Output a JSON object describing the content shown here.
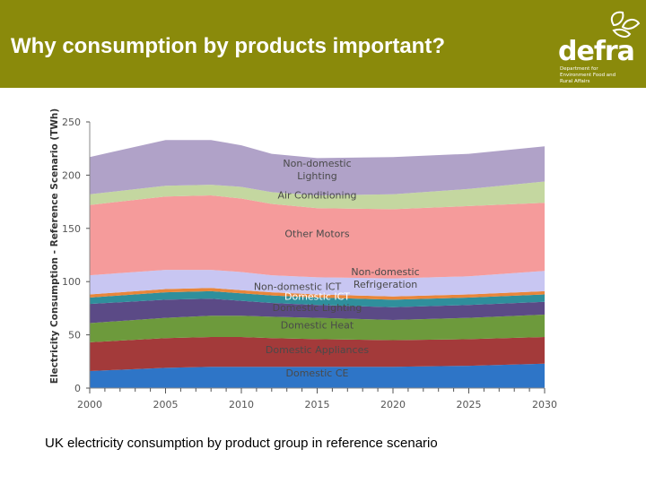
{
  "header": {
    "title": "Why consumption by products important?",
    "logo": {
      "word": "defra",
      "tagline": "Department for Environment Food and Rural Affairs",
      "color": "#ffffff"
    },
    "bg_color": "#8a8a0b"
  },
  "caption": "UK electricity consumption by product group in reference scenario",
  "chart_data": {
    "type": "area",
    "stacked": true,
    "title": "",
    "xlabel": "",
    "ylabel": "Electricity Consumption - Reference Scenario (TWh)",
    "xlim": [
      2000,
      2030
    ],
    "ylim": [
      0,
      250
    ],
    "x_ticks": [
      2000,
      2005,
      2010,
      2015,
      2020,
      2025,
      2030
    ],
    "y_ticks": [
      0,
      50,
      100,
      150,
      200,
      250
    ],
    "grid": false,
    "legend": "none",
    "x": [
      2000,
      2005,
      2008,
      2010,
      2012,
      2015,
      2020,
      2025,
      2030
    ],
    "series": [
      {
        "name": "Domestic CE",
        "color": "#2e75c7",
        "values": [
          16,
          19,
          20,
          20,
          20,
          20,
          20,
          21,
          23
        ]
      },
      {
        "name": "Domestic Appliances",
        "color": "#a33a3a",
        "values": [
          27,
          28,
          28,
          28,
          27,
          26,
          25,
          25,
          25
        ]
      },
      {
        "name": "Domestic Heat",
        "color": "#6d9a3c",
        "values": [
          18,
          19,
          20,
          20,
          20,
          20,
          19,
          20,
          21
        ]
      },
      {
        "name": "Domestic Lighting",
        "color": "#5b4a86",
        "values": [
          18,
          17,
          16,
          14,
          13,
          12,
          12,
          12,
          12
        ]
      },
      {
        "name": "Domestic ICT",
        "color": "#2f8f9c",
        "values": [
          6,
          7,
          7,
          7,
          7,
          7,
          7,
          7,
          7
        ]
      },
      {
        "name": "Non-domestic ICT",
        "color": "#e8863a",
        "values": [
          3,
          3,
          3,
          3,
          3,
          3,
          3,
          3,
          3
        ]
      },
      {
        "name": "Non-domestic Refrigeration",
        "color": "#c8c6f2",
        "values": [
          18,
          18,
          17,
          17,
          16,
          16,
          17,
          17,
          19
        ]
      },
      {
        "name": "Other Motors",
        "color": "#f59b9b",
        "values": [
          66,
          69,
          70,
          69,
          67,
          65,
          65,
          66,
          64
        ]
      },
      {
        "name": "Air Conditioning",
        "color": "#c4d7a0",
        "values": [
          10,
          10,
          10,
          11,
          11,
          12,
          14,
          16,
          20
        ]
      },
      {
        "name": "Non-domestic Lighting",
        "color": "#b0a2c8",
        "values": [
          35,
          43,
          42,
          39,
          36,
          35,
          35,
          33,
          33
        ]
      }
    ],
    "area_labels": [
      {
        "series": "Domestic CE",
        "text": "Domestic CE"
      },
      {
        "series": "Domestic Appliances",
        "text": "Domestic Appliances"
      },
      {
        "series": "Domestic Heat",
        "text": "Domestic Heat"
      },
      {
        "series": "Domestic Lighting",
        "text": "Domestic Lighting"
      },
      {
        "series": "Domestic ICT",
        "text": "Domestic ICT"
      },
      {
        "series": "Non-domestic ICT",
        "text": "Non-domestic ICT"
      },
      {
        "series": "Non-domestic Refrigeration",
        "text": "Non-domestic Refrigeration"
      },
      {
        "series": "Other Motors",
        "text": "Other Motors"
      },
      {
        "series": "Air Conditioning",
        "text": "Air Conditioning"
      },
      {
        "series": "Non-domestic Lighting",
        "text": "Non-domestic Lighting"
      }
    ]
  }
}
